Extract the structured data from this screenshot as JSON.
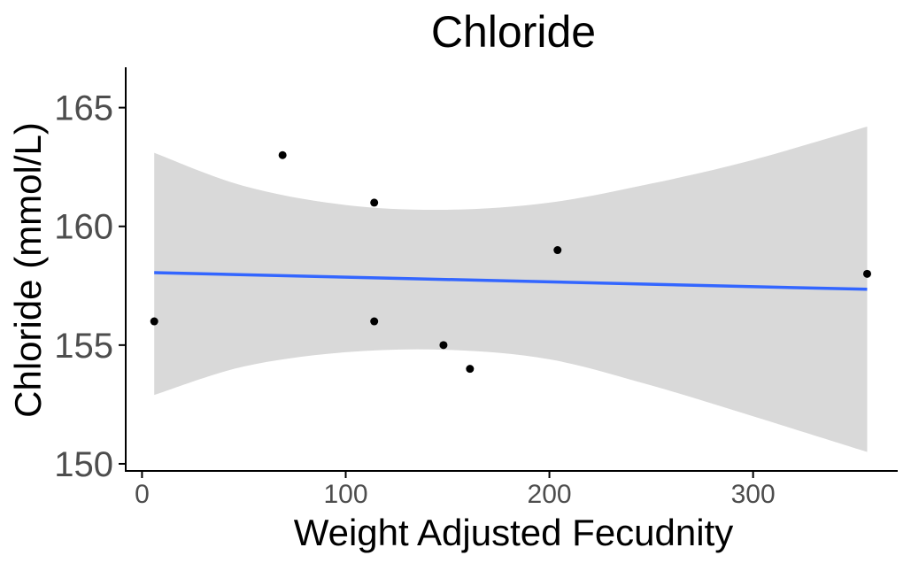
{
  "chart_data": {
    "type": "scatter",
    "title": "Chloride",
    "xlabel": "Weight Adjusted Fecudnity",
    "ylabel": "Chloride (mmol/L)",
    "xlim": [
      -8,
      371
    ],
    "ylim": [
      149.7,
      166.7
    ],
    "x_ticks": [
      0,
      100,
      200,
      300
    ],
    "y_ticks": [
      150,
      155,
      160,
      165
    ],
    "x_tick_labels": [
      "0",
      "100",
      "200",
      "300"
    ],
    "y_tick_labels": [
      "150",
      "155",
      "160",
      "165"
    ],
    "grid": false,
    "legend": "none",
    "points": [
      {
        "x": 6,
        "y": 156
      },
      {
        "x": 69,
        "y": 163
      },
      {
        "x": 114,
        "y": 161
      },
      {
        "x": 114,
        "y": 156
      },
      {
        "x": 148,
        "y": 155
      },
      {
        "x": 161,
        "y": 154
      },
      {
        "x": 204,
        "y": 159
      },
      {
        "x": 356,
        "y": 158
      }
    ],
    "fit_line": {
      "method": "linear",
      "x": [
        6,
        356
      ],
      "y": [
        158.05,
        157.35
      ]
    },
    "confidence_band": {
      "x": [
        6,
        50,
        100,
        150,
        200,
        250,
        300,
        356
      ],
      "upper": [
        163.1,
        161.7,
        160.9,
        160.7,
        161.0,
        161.8,
        162.8,
        164.2
      ],
      "lower": [
        152.9,
        154.1,
        154.7,
        154.8,
        154.4,
        153.3,
        152.0,
        150.5
      ]
    },
    "colors": {
      "points": "#000000",
      "line": "#3366ff",
      "band": "#d9d9d9",
      "axis": "#000000",
      "tick_label": "#4d4d4d"
    }
  }
}
